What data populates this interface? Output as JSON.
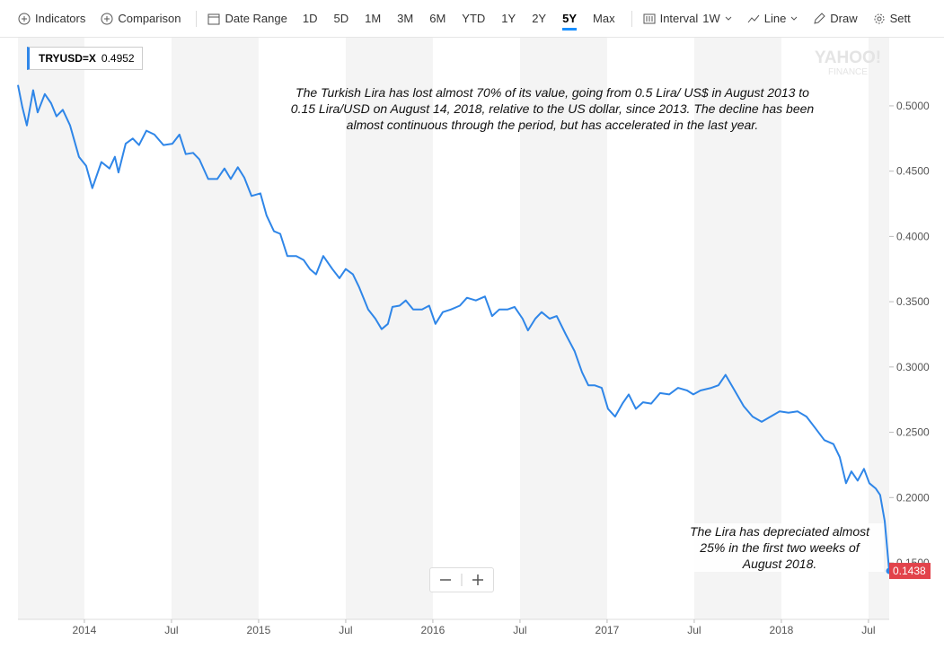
{
  "toolbar": {
    "indicators": "Indicators",
    "comparison": "Comparison",
    "date_range": "Date Range",
    "ranges": [
      "1D",
      "5D",
      "1M",
      "3M",
      "6M",
      "YTD",
      "1Y",
      "2Y",
      "5Y",
      "Max"
    ],
    "active_range": "5Y",
    "interval": "Interval",
    "interval_value": "1W",
    "line": "Line",
    "draw": "Draw",
    "settings": "Sett"
  },
  "watermark": [
    "YAHOO!",
    "FINANCE"
  ],
  "chart_data": {
    "type": "line",
    "legend_value": 0.4952,
    "annotations": [
      "The Turkish Lira has lost almost 70% of its value, going from 0.5 Lira/ US$ in August 2013 to 0.15 Lira/USD on August 14, 2018, relative to the US dollar, since 2013. The decline has been almost continuous through the period, but has accelerated in the last year.",
      "The Lira has depreciated almost 25% in the first two weeks of August 2018."
    ],
    "x": [
      2013.619,
      2013.644,
      2013.67,
      2013.706,
      2013.732,
      2013.773,
      2013.809,
      2013.84,
      2013.876,
      2013.918,
      2013.969,
      2014.01,
      2014.046,
      2014.098,
      2014.144,
      2014.175,
      2014.196,
      2014.237,
      2014.278,
      2014.314,
      2014.356,
      2014.402,
      2014.454,
      2014.505,
      2014.546,
      2014.582,
      2014.624,
      2014.66,
      2014.711,
      2014.763,
      2014.804,
      2014.84,
      2014.881,
      2014.918,
      2014.959,
      2015.01,
      2015.046,
      2015.088,
      2015.124,
      2015.165,
      2015.216,
      2015.258,
      2015.294,
      2015.33,
      2015.371,
      2015.423,
      2015.464,
      2015.5,
      2015.541,
      2015.577,
      2015.629,
      2015.67,
      2015.706,
      2015.742,
      2015.768,
      2015.809,
      2015.845,
      2015.887,
      2015.938,
      2015.979,
      2016.015,
      2016.057,
      2016.103,
      2016.155,
      2016.196,
      2016.247,
      2016.299,
      2016.34,
      2016.381,
      2016.428,
      2016.469,
      2016.515,
      2016.546,
      2016.588,
      2016.624,
      2016.67,
      2016.711,
      2016.763,
      2016.814,
      2016.856,
      2016.892,
      2016.928,
      2016.969,
      2017.005,
      2017.046,
      2017.088,
      2017.124,
      2017.165,
      2017.206,
      2017.253,
      2017.304,
      2017.356,
      2017.407,
      2017.459,
      2017.495,
      2017.536,
      2017.598,
      2017.639,
      2017.68,
      2017.732,
      2017.784,
      2017.835,
      2017.887,
      2017.938,
      2017.99,
      2018.041,
      2018.093,
      2018.144,
      2018.196,
      2018.247,
      2018.299,
      2018.335,
      2018.371,
      2018.402,
      2018.438,
      2018.474,
      2018.505,
      2018.541,
      2018.567,
      2018.593,
      2018.619
    ],
    "series": [
      {
        "name": "TRYUSD=X",
        "color": "#2f86e8",
        "values": [
          0.516,
          0.499,
          0.485,
          0.512,
          0.495,
          0.509,
          0.502,
          0.492,
          0.497,
          0.485,
          0.461,
          0.454,
          0.437,
          0.457,
          0.452,
          0.461,
          0.449,
          0.471,
          0.475,
          0.47,
          0.481,
          0.478,
          0.47,
          0.471,
          0.478,
          0.463,
          0.464,
          0.459,
          0.444,
          0.444,
          0.452,
          0.444,
          0.453,
          0.445,
          0.431,
          0.433,
          0.416,
          0.404,
          0.402,
          0.385,
          0.385,
          0.382,
          0.375,
          0.371,
          0.385,
          0.375,
          0.368,
          0.375,
          0.371,
          0.361,
          0.344,
          0.337,
          0.329,
          0.333,
          0.346,
          0.347,
          0.351,
          0.344,
          0.344,
          0.347,
          0.333,
          0.342,
          0.344,
          0.347,
          0.353,
          0.351,
          0.354,
          0.339,
          0.344,
          0.344,
          0.346,
          0.337,
          0.328,
          0.337,
          0.342,
          0.337,
          0.339,
          0.325,
          0.312,
          0.296,
          0.286,
          0.286,
          0.284,
          0.268,
          0.262,
          0.272,
          0.279,
          0.268,
          0.273,
          0.272,
          0.28,
          0.279,
          0.284,
          0.282,
          0.279,
          0.282,
          0.284,
          0.286,
          0.294,
          0.282,
          0.27,
          0.262,
          0.258,
          0.262,
          0.266,
          0.265,
          0.266,
          0.262,
          0.253,
          0.244,
          0.241,
          0.231,
          0.211,
          0.22,
          0.213,
          0.222,
          0.211,
          0.207,
          0.202,
          0.182,
          0.1438
        ]
      }
    ],
    "xlim": [
      2013.619,
      2018.619
    ],
    "xticks": [
      2014,
      {
        "value": 2014.5,
        "label": "Jul"
      },
      2015,
      {
        "value": 2015.5,
        "label": "Jul"
      },
      2016,
      {
        "value": 2016.5,
        "label": "Jul"
      },
      2017,
      {
        "value": 2017.5,
        "label": "Jul"
      },
      2018,
      {
        "value": 2018.5,
        "label": "Jul"
      }
    ],
    "ylim": [
      0.1067,
      0.5522
    ],
    "yticks": [
      {
        "value": 0.15,
        "label": "0.1500"
      },
      {
        "value": 0.2,
        "label": "0.2000"
      },
      {
        "value": 0.25,
        "label": "0.2500"
      },
      {
        "value": 0.3,
        "label": "0.3000"
      },
      {
        "value": 0.35,
        "label": "0.3500"
      },
      {
        "value": 0.4,
        "label": "0.4000"
      },
      {
        "value": 0.45,
        "label": "0.4500"
      },
      {
        "value": 0.5,
        "label": "0.5000"
      }
    ],
    "shaded_bands": true
  }
}
